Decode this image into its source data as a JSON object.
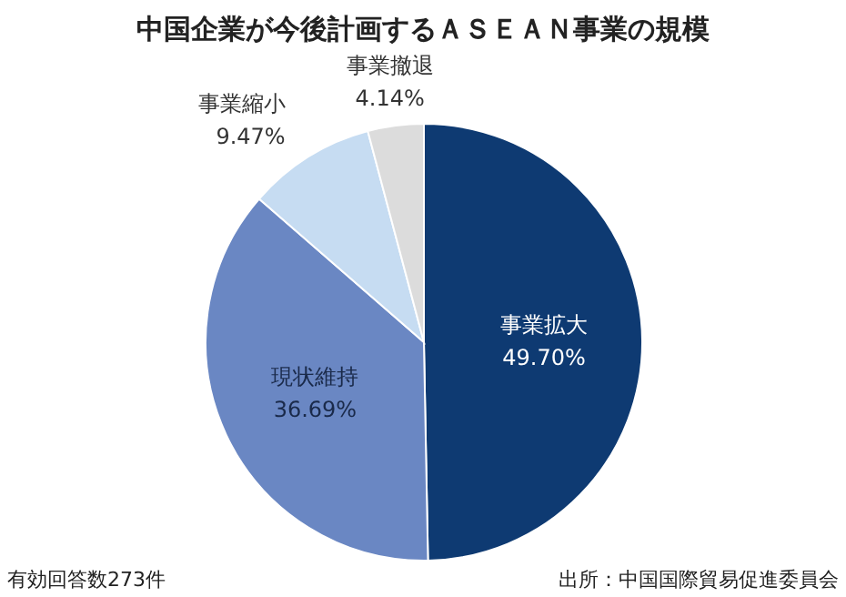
{
  "chart_data": {
    "type": "pie",
    "title": "中国企業が今後計画するＡＳＥＡＮ事業の規模",
    "categories": [
      "事業拡大",
      "現状維持",
      "事業縮小",
      "事業撤退"
    ],
    "values": [
      49.7,
      36.69,
      9.47,
      4.14
    ],
    "colors": [
      "#0e3a72",
      "#6a87c3",
      "#c6dcf2",
      "#dcdcdc"
    ],
    "value_labels": [
      "49.70%",
      "36.69%",
      "9.47%",
      "4.14%"
    ],
    "annotations": [
      "有効回答数273件",
      "出所：中国国際貿易促進委員会"
    ]
  }
}
